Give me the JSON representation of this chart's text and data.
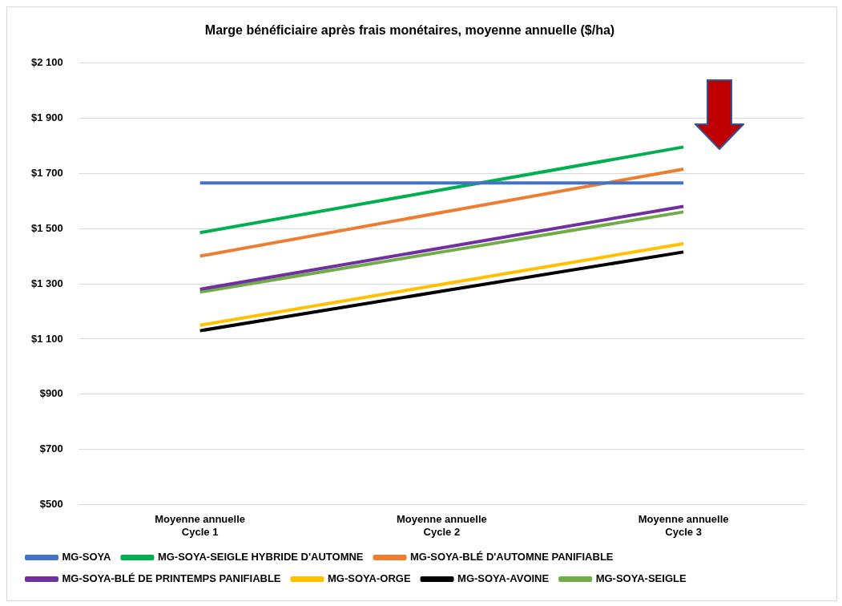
{
  "chart_data": {
    "type": "line",
    "title": "Marge bénéficiaire après frais monétaires, moyenne annuelle ($/ha)",
    "categories": [
      "Moyenne annuelle\nCycle 1",
      "Moyenne annuelle\nCycle 2",
      "Moyenne annuelle\nCycle 3"
    ],
    "series": [
      {
        "name": "MG-SOYA",
        "color": "#4472c4",
        "values": [
          1665,
          1665,
          1665
        ]
      },
      {
        "name": "MG-SOYA-SEIGLE HYBRIDE D'AUTOMNE",
        "color": "#00b050",
        "values": [
          1485,
          1640,
          1795
        ]
      },
      {
        "name": "MG-SOYA-BLÉ D'AUTOMNE PANIFIABLE",
        "color": "#ed7d31",
        "values": [
          1400,
          1558,
          1715
        ]
      },
      {
        "name": "MG-SOYA-BLÉ DE PRINTEMPS PANIFIABLE",
        "color": "#7030a0",
        "values": [
          1280,
          1430,
          1580
        ]
      },
      {
        "name": "MG-SOYA-ORGE",
        "color": "#ffc000",
        "values": [
          1150,
          1298,
          1445
        ]
      },
      {
        "name": "MG-SOYA-AVOINE",
        "color": "#000000",
        "values": [
          1130,
          1273,
          1415
        ]
      },
      {
        "name": "MG-SOYA-SEIGLE",
        "color": "#70ad47",
        "values": [
          1270,
          1415,
          1560
        ]
      }
    ],
    "ylim": [
      500,
      2100
    ],
    "yticks": [
      {
        "value": 500,
        "label": "$500"
      },
      {
        "value": 700,
        "label": "$700"
      },
      {
        "value": 900,
        "label": "$900"
      },
      {
        "value": 1100,
        "label": "$1 100"
      },
      {
        "value": 1300,
        "label": "$1 300"
      },
      {
        "value": 1500,
        "label": "$1 500"
      },
      {
        "value": 1700,
        "label": "$1 700"
      },
      {
        "value": 1900,
        "label": "$1 900"
      },
      {
        "value": 2100,
        "label": "$2 100"
      }
    ],
    "grid": "y",
    "legend": "bottom",
    "marker": "none",
    "line_style": "solid"
  }
}
